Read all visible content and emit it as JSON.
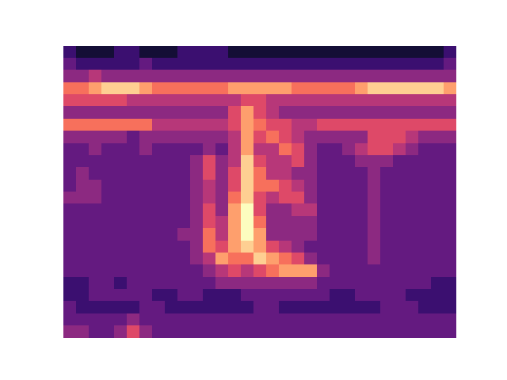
{
  "chart_data": {
    "type": "heatmap",
    "tick_labels": false,
    "zlim": [
      0,
      10
    ],
    "cells": [
      [
        2,
        1,
        1,
        1,
        2,
        2,
        1,
        1,
        1,
        2,
        2,
        2,
        2,
        1,
        1,
        1,
        1,
        1,
        1,
        1,
        1,
        1,
        1,
        1,
        1,
        1,
        1,
        1,
        1,
        1,
        2
      ],
      [
        3,
        2,
        2,
        2,
        2,
        2,
        3,
        2,
        2,
        2,
        2,
        2,
        2,
        2,
        2,
        2,
        2,
        2,
        2,
        2,
        2,
        2,
        2,
        2,
        2,
        2,
        2,
        2,
        2,
        2,
        3
      ],
      [
        4,
        4,
        5,
        4,
        4,
        4,
        4,
        4,
        4,
        4,
        4,
        4,
        4,
        4,
        4,
        4,
        4,
        4,
        4,
        4,
        4,
        4,
        4,
        4,
        4,
        4,
        4,
        4,
        4,
        4,
        4
      ],
      [
        7,
        7,
        8,
        9,
        9,
        9,
        8,
        7,
        7,
        7,
        7,
        7,
        7,
        8,
        8,
        8,
        8,
        8,
        7,
        7,
        7,
        7,
        7,
        8,
        9,
        9,
        9,
        9,
        9,
        9,
        8
      ],
      [
        6,
        6,
        6,
        6,
        6,
        5,
        5,
        5,
        5,
        5,
        5,
        5,
        5,
        5,
        6,
        6,
        5,
        5,
        5,
        5,
        5,
        5,
        5,
        5,
        5,
        5,
        5,
        5,
        5,
        5,
        5
      ],
      [
        4,
        4,
        4,
        4,
        4,
        4,
        4,
        4,
        4,
        4,
        4,
        4,
        4,
        6,
        8,
        6,
        5,
        4,
        4,
        4,
        4,
        4,
        4,
        4,
        4,
        4,
        4,
        4,
        4,
        4,
        4
      ],
      [
        7,
        7,
        7,
        7,
        7,
        7,
        7,
        5,
        5,
        5,
        5,
        5,
        5,
        6,
        8,
        7,
        6,
        6,
        5,
        5,
        6,
        6,
        6,
        6,
        6,
        6,
        6,
        6,
        6,
        6,
        6
      ],
      [
        4,
        4,
        4,
        4,
        4,
        3,
        4,
        4,
        4,
        4,
        4,
        4,
        4,
        5,
        8,
        6,
        7,
        6,
        5,
        4,
        4,
        4,
        4,
        4,
        6,
        6,
        6,
        5,
        4,
        4,
        4
      ],
      [
        3,
        3,
        4,
        3,
        3,
        3,
        4,
        3,
        3,
        3,
        3,
        4,
        3,
        5,
        8,
        5,
        5,
        7,
        6,
        4,
        3,
        3,
        4,
        5,
        6,
        6,
        5,
        4,
        3,
        3,
        3
      ],
      [
        3,
        3,
        3,
        3,
        3,
        3,
        3,
        3,
        3,
        3,
        4,
        6,
        4,
        5,
        9,
        6,
        5,
        5,
        6,
        4,
        3,
        3,
        3,
        4,
        4,
        4,
        3,
        3,
        3,
        3,
        3
      ],
      [
        3,
        4,
        3,
        3,
        3,
        3,
        3,
        3,
        3,
        3,
        4,
        6,
        4,
        6,
        9,
        7,
        5,
        5,
        4,
        4,
        3,
        3,
        3,
        3,
        4,
        3,
        3,
        3,
        3,
        3,
        3
      ],
      [
        3,
        4,
        4,
        3,
        3,
        3,
        3,
        3,
        3,
        3,
        4,
        5,
        4,
        6,
        9,
        7,
        7,
        6,
        5,
        4,
        3,
        3,
        3,
        3,
        4,
        3,
        3,
        3,
        3,
        3,
        3
      ],
      [
        4,
        4,
        4,
        3,
        3,
        3,
        3,
        3,
        3,
        3,
        4,
        5,
        4,
        7,
        9,
        6,
        5,
        6,
        6,
        4,
        3,
        3,
        3,
        3,
        4,
        3,
        3,
        3,
        3,
        3,
        3
      ],
      [
        3,
        3,
        3,
        3,
        3,
        3,
        3,
        3,
        3,
        3,
        4,
        6,
        4,
        8,
        10,
        6,
        4,
        4,
        5,
        5,
        3,
        3,
        3,
        3,
        4,
        3,
        3,
        3,
        3,
        3,
        3
      ],
      [
        3,
        3,
        3,
        3,
        3,
        3,
        3,
        3,
        3,
        3,
        4,
        6,
        5,
        8,
        10,
        7,
        4,
        4,
        4,
        4,
        3,
        3,
        3,
        3,
        4,
        3,
        3,
        3,
        3,
        3,
        3
      ],
      [
        3,
        3,
        3,
        3,
        3,
        3,
        3,
        3,
        3,
        4,
        4,
        7,
        5,
        8,
        10,
        8,
        4,
        4,
        4,
        4,
        3,
        3,
        3,
        3,
        4,
        3,
        3,
        3,
        3,
        3,
        3
      ],
      [
        3,
        3,
        3,
        3,
        3,
        3,
        3,
        3,
        3,
        3,
        4,
        7,
        6,
        8,
        9,
        8,
        6,
        5,
        4,
        3,
        3,
        3,
        3,
        3,
        4,
        3,
        3,
        3,
        3,
        3,
        3
      ],
      [
        3,
        3,
        3,
        3,
        3,
        3,
        3,
        3,
        3,
        3,
        4,
        5,
        8,
        7,
        7,
        9,
        8,
        7,
        6,
        4,
        3,
        3,
        3,
        3,
        4,
        3,
        3,
        3,
        3,
        3,
        3
      ],
      [
        3,
        3,
        3,
        3,
        3,
        3,
        3,
        3,
        3,
        3,
        3,
        4,
        5,
        6,
        5,
        6,
        7,
        8,
        8,
        8,
        4,
        3,
        3,
        3,
        3,
        3,
        3,
        3,
        3,
        3,
        3
      ],
      [
        2,
        2,
        3,
        3,
        2,
        3,
        3,
        3,
        3,
        3,
        3,
        3,
        4,
        4,
        4,
        4,
        4,
        4,
        4,
        4,
        3,
        3,
        3,
        3,
        3,
        3,
        3,
        3,
        3,
        2,
        2
      ],
      [
        2,
        2,
        3,
        3,
        3,
        3,
        3,
        2,
        2,
        3,
        3,
        2,
        2,
        2,
        3,
        3,
        3,
        3,
        3,
        3,
        3,
        2,
        2,
        3,
        3,
        3,
        3,
        2,
        2,
        2,
        2
      ],
      [
        3,
        2,
        2,
        2,
        2,
        2,
        3,
        3,
        2,
        2,
        2,
        2,
        2,
        2,
        2,
        3,
        3,
        2,
        2,
        2,
        2,
        2,
        2,
        2,
        2,
        3,
        3,
        3,
        2,
        2,
        2
      ],
      [
        3,
        3,
        3,
        3,
        3,
        4,
        3,
        3,
        3,
        3,
        3,
        3,
        3,
        3,
        3,
        3,
        3,
        3,
        3,
        3,
        3,
        3,
        3,
        3,
        3,
        3,
        3,
        3,
        3,
        3,
        3
      ],
      [
        4,
        4,
        3,
        3,
        4,
        6,
        4,
        3,
        3,
        3,
        3,
        3,
        3,
        3,
        3,
        3,
        3,
        3,
        3,
        3,
        3,
        3,
        3,
        3,
        3,
        3,
        3,
        3,
        3,
        3,
        3
      ]
    ]
  }
}
